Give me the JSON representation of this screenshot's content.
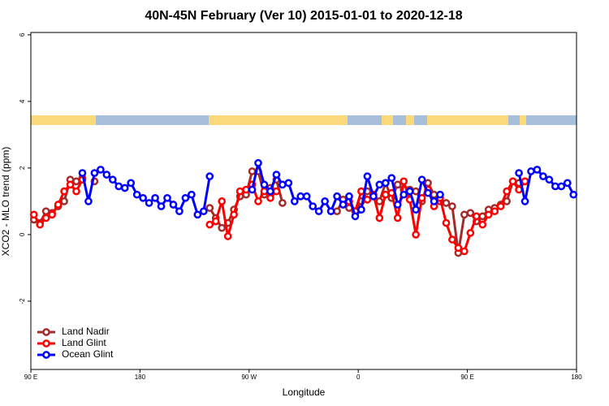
{
  "chart_data": {
    "type": "line",
    "title": "40N-45N February (Ver 10)   2015-01-01 to 2020-12-18",
    "x_label": "Longitude",
    "y_label": "XCO2 - MLO trend (ppm)",
    "xlim": [
      90,
      540
    ],
    "xticks": [
      {
        "value": 90,
        "label": "90 E"
      },
      180,
      {
        "value": 270,
        "label": "90 W"
      },
      {
        "value": 360,
        "label": "0"
      },
      {
        "value": 450,
        "label": "90 E"
      },
      {
        "value": 540,
        "label": "180"
      }
    ],
    "ylim": [
      -4.05,
      6.07
    ],
    "yticks": [
      -2,
      0,
      2,
      4,
      6
    ],
    "legend": "bottom-left",
    "series": [
      {
        "name": "Land Nadir",
        "color": "#a52a2a",
        "x": [
          92.5,
          97.5,
          102.5,
          107.5,
          112.5,
          117.5,
          122.5,
          127.5,
          132.5,
          null,
          142.5,
          null,
          237.5,
          242.5,
          247.5,
          252.5,
          257.5,
          262.5,
          267.5,
          272.5,
          277.5,
          282.5,
          287.5,
          292.5,
          297.5,
          null,
          342.5,
          347.5,
          352.5,
          357.5,
          362.5,
          367.5,
          372.5,
          377.5,
          382.5,
          387.5,
          392.5,
          397.5,
          402.5,
          407.5,
          412.5,
          417.5,
          422.5,
          427.5,
          432.5,
          437.5,
          442.5,
          447.5,
          452.5,
          457.5,
          462.5,
          467.5,
          472.5,
          477.5,
          482.5,
          487.5,
          492.5,
          497.5
        ],
        "values": [
          0.45,
          0.35,
          0.7,
          0.65,
          0.85,
          1.0,
          1.65,
          1.6,
          1.7,
          null,
          1.6,
          null,
          0.8,
          0.5,
          0.2,
          0.35,
          0.75,
          1.15,
          1.2,
          1.9,
          1.9,
          1.2,
          1.4,
          1.65,
          0.95,
          null,
          0.7,
          1.05,
          0.8,
          0.7,
          1.0,
          1.3,
          1.2,
          1.0,
          1.55,
          1.1,
          1.5,
          1.35,
          1.35,
          1.3,
          1.0,
          1.55,
          1.2,
          1.0,
          0.95,
          0.85,
          -0.55,
          0.6,
          0.65,
          0.4,
          0.55,
          0.75,
          0.8,
          0.9,
          1.0,
          1.6,
          1.55,
          1.6
        ]
      },
      {
        "name": "Land Glint",
        "color": "#ff0000",
        "x": [
          92.5,
          97.5,
          102.5,
          107.5,
          112.5,
          117.5,
          122.5,
          127.5,
          132.5,
          null,
          237.5,
          242.5,
          247.5,
          252.5,
          257.5,
          262.5,
          267.5,
          272.5,
          277.5,
          282.5,
          287.5,
          292.5,
          null,
          352.5,
          357.5,
          362.5,
          367.5,
          372.5,
          377.5,
          382.5,
          387.5,
          392.5,
          397.5,
          402.5,
          407.5,
          412.5,
          417.5,
          422.5,
          427.5,
          432.5,
          437.5,
          442.5,
          447.5,
          452.5,
          457.5,
          462.5,
          467.5,
          472.5,
          477.5,
          482.5,
          487.5,
          492.5,
          497.5
        ],
        "values": [
          0.6,
          0.3,
          0.5,
          0.6,
          0.9,
          1.3,
          1.5,
          1.3,
          1.65,
          null,
          0.3,
          0.4,
          1.0,
          -0.05,
          0.6,
          1.3,
          1.35,
          1.5,
          1.0,
          1.3,
          1.1,
          1.3,
          null,
          1.0,
          0.7,
          1.3,
          1.05,
          1.2,
          0.5,
          1.2,
          1.25,
          0.5,
          1.6,
          1.05,
          0.0,
          1.1,
          1.35,
          0.85,
          1.1,
          0.35,
          -0.15,
          -0.4,
          -0.5,
          0.05,
          0.55,
          0.3,
          0.6,
          0.7,
          0.85,
          1.3,
          1.6,
          1.35,
          1.6
        ]
      },
      {
        "name": "Ocean Glint",
        "color": "#0000ff",
        "x": [
          132.5,
          137.5,
          142.5,
          147.5,
          152.5,
          157.5,
          162.5,
          167.5,
          172.5,
          177.5,
          182.5,
          187.5,
          192.5,
          197.5,
          202.5,
          207.5,
          212.5,
          217.5,
          222.5,
          227.5,
          232.5,
          237.5,
          null,
          272.5,
          277.5,
          282.5,
          287.5,
          292.5,
          297.5,
          302.5,
          307.5,
          312.5,
          317.5,
          322.5,
          327.5,
          332.5,
          337.5,
          342.5,
          347.5,
          352.5,
          357.5,
          362.5,
          367.5,
          372.5,
          377.5,
          382.5,
          387.5,
          392.5,
          397.5,
          402.5,
          407.5,
          412.5,
          417.5,
          422.5,
          427.5,
          null,
          492.5,
          497.5,
          502.5,
          507.5,
          512.5,
          517.5,
          522.5,
          527.5,
          532.5,
          537.5
        ],
        "values": [
          1.85,
          1.0,
          1.85,
          1.95,
          1.8,
          1.65,
          1.45,
          1.4,
          1.55,
          1.2,
          1.1,
          0.95,
          1.1,
          0.85,
          1.1,
          0.9,
          0.7,
          1.1,
          1.2,
          0.6,
          0.7,
          1.75,
          null,
          1.35,
          2.15,
          1.5,
          1.3,
          1.8,
          1.5,
          1.55,
          1.0,
          1.15,
          1.15,
          0.85,
          0.7,
          1.0,
          0.7,
          1.15,
          0.9,
          1.15,
          0.55,
          0.75,
          1.75,
          1.15,
          1.5,
          1.55,
          1.7,
          0.9,
          1.2,
          1.3,
          0.75,
          1.65,
          1.25,
          1.0,
          1.2,
          null,
          1.85,
          1.0,
          1.9,
          1.95,
          1.75,
          1.65,
          1.45,
          1.45,
          1.55,
          1.2
        ]
      }
    ]
  }
}
